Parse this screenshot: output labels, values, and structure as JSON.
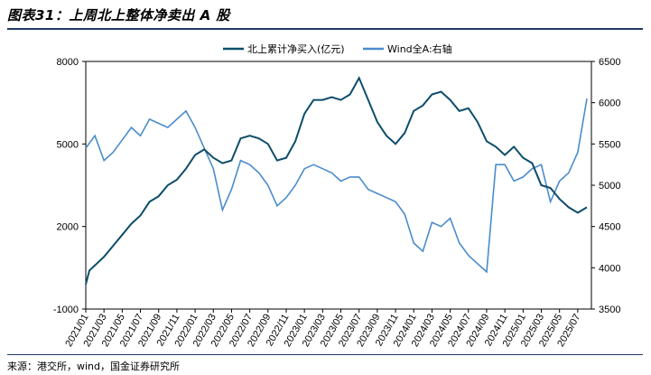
{
  "title": "图表31：上周北上整体净卖出 A 股",
  "source": "来源：港交所，wind，国金证券研究所",
  "colors": {
    "series1": "#0d4d6b",
    "series2": "#4a8ccc",
    "rule": "#1f3864"
  },
  "chart_data": {
    "type": "line",
    "x_tick_labels": [
      "2021/01",
      "2021/03",
      "2021/05",
      "2021/07",
      "2021/09",
      "2021/11",
      "2022/01",
      "2022/03",
      "2022/05",
      "2022/07",
      "2022/09",
      "2022/11",
      "2023/01",
      "2023/03",
      "2023/05",
      "2023/07",
      "2023/09",
      "2023/11",
      "2024/01",
      "2024/03",
      "2024/05",
      "2024/07",
      "2024/09",
      "2024/11",
      "2025/01",
      "2025/03",
      "2025/05",
      "2025/07"
    ],
    "y_left": {
      "min": -1000,
      "max": 8000,
      "ticks": [
        "8000",
        "5000",
        "2000",
        "-1000"
      ]
    },
    "y_right": {
      "min": 3500,
      "max": 6500,
      "ticks": [
        "6500",
        "6000",
        "5500",
        "5000",
        "4500",
        "4000",
        "3500"
      ]
    },
    "legend": {
      "placement": "top",
      "items": [
        "北上累计净买入(亿元)",
        "Wind全A:右轴"
      ]
    },
    "series": [
      {
        "name": "北上累计净买入(亿元)",
        "axis": "left",
        "points": [
          [
            "2021/01",
            -100
          ],
          [
            "2021/01",
            400
          ],
          [
            "2021/03",
            900
          ],
          [
            "2021/04",
            1300
          ],
          [
            "2021/05",
            1700
          ],
          [
            "2021/06",
            2100
          ],
          [
            "2021/07",
            2400
          ],
          [
            "2021/08",
            2900
          ],
          [
            "2021/09",
            3100
          ],
          [
            "2021/10",
            3500
          ],
          [
            "2021/11",
            3700
          ],
          [
            "2021/12",
            4100
          ],
          [
            "2022/01",
            4600
          ],
          [
            "2022/02",
            4800
          ],
          [
            "2022/03",
            4500
          ],
          [
            "2022/04",
            4300
          ],
          [
            "2022/05",
            4400
          ],
          [
            "2022/06",
            5200
          ],
          [
            "2022/07",
            5300
          ],
          [
            "2022/08",
            5200
          ],
          [
            "2022/09",
            5000
          ],
          [
            "2022/10",
            4400
          ],
          [
            "2022/11",
            4500
          ],
          [
            "2022/12",
            5100
          ],
          [
            "2023/01",
            6100
          ],
          [
            "2023/02",
            6600
          ],
          [
            "2023/03",
            6600
          ],
          [
            "2023/04",
            6700
          ],
          [
            "2023/05",
            6600
          ],
          [
            "2023/06",
            6800
          ],
          [
            "2023/07",
            7400
          ],
          [
            "2023/08",
            6600
          ],
          [
            "2023/09",
            5800
          ],
          [
            "2023/10",
            5300
          ],
          [
            "2023/11",
            5000
          ],
          [
            "2023/12",
            5400
          ],
          [
            "2024/01",
            6200
          ],
          [
            "2024/02",
            6400
          ],
          [
            "2024/03",
            6800
          ],
          [
            "2024/04",
            6900
          ],
          [
            "2024/05",
            6600
          ],
          [
            "2024/06",
            6200
          ],
          [
            "2024/07",
            6300
          ],
          [
            "2024/08",
            5800
          ],
          [
            "2024/09",
            5100
          ],
          [
            "2024/10",
            4900
          ],
          [
            "2024/11",
            4600
          ],
          [
            "2024/12",
            4900
          ],
          [
            "2025/01",
            4500
          ],
          [
            "2025/02",
            4300
          ],
          [
            "2025/03",
            3500
          ],
          [
            "2025/04",
            3400
          ],
          [
            "2025/05",
            3000
          ],
          [
            "2025/06",
            2700
          ],
          [
            "2025/07",
            2500
          ],
          [
            "2025/08",
            2700
          ]
        ]
      },
      {
        "name": "Wind全A:右轴",
        "axis": "right",
        "points": [
          [
            "2021/01",
            5450
          ],
          [
            "2021/02",
            5600
          ],
          [
            "2021/03",
            5300
          ],
          [
            "2021/04",
            5400
          ],
          [
            "2021/05",
            5550
          ],
          [
            "2021/06",
            5700
          ],
          [
            "2021/07",
            5600
          ],
          [
            "2021/08",
            5800
          ],
          [
            "2021/09",
            5750
          ],
          [
            "2021/10",
            5700
          ],
          [
            "2021/11",
            5800
          ],
          [
            "2021/12",
            5900
          ],
          [
            "2022/01",
            5700
          ],
          [
            "2022/02",
            5450
          ],
          [
            "2022/03",
            5200
          ],
          [
            "2022/04",
            4700
          ],
          [
            "2022/05",
            4950
          ],
          [
            "2022/06",
            5300
          ],
          [
            "2022/07",
            5250
          ],
          [
            "2022/08",
            5150
          ],
          [
            "2022/09",
            5000
          ],
          [
            "2022/10",
            4750
          ],
          [
            "2022/11",
            4850
          ],
          [
            "2022/12",
            5000
          ],
          [
            "2023/01",
            5200
          ],
          [
            "2023/02",
            5250
          ],
          [
            "2023/03",
            5200
          ],
          [
            "2023/04",
            5150
          ],
          [
            "2023/05",
            5050
          ],
          [
            "2023/06",
            5100
          ],
          [
            "2023/07",
            5100
          ],
          [
            "2023/08",
            4950
          ],
          [
            "2023/09",
            4900
          ],
          [
            "2023/10",
            4850
          ],
          [
            "2023/11",
            4800
          ],
          [
            "2023/12",
            4650
          ],
          [
            "2024/01",
            4300
          ],
          [
            "2024/02",
            4200
          ],
          [
            "2024/03",
            4550
          ],
          [
            "2024/04",
            4500
          ],
          [
            "2024/05",
            4600
          ],
          [
            "2024/06",
            4300
          ],
          [
            "2024/07",
            4150
          ],
          [
            "2024/08",
            4050
          ],
          [
            "2024/09",
            3950
          ],
          [
            "2024/10",
            5250
          ],
          [
            "2024/11",
            5250
          ],
          [
            "2024/12",
            5050
          ],
          [
            "2025/01",
            5100
          ],
          [
            "2025/02",
            5200
          ],
          [
            "2025/03",
            5250
          ],
          [
            "2025/04",
            4800
          ],
          [
            "2025/05",
            5050
          ],
          [
            "2025/06",
            5150
          ],
          [
            "2025/07",
            5400
          ],
          [
            "2025/08",
            6050
          ]
        ]
      }
    ]
  }
}
